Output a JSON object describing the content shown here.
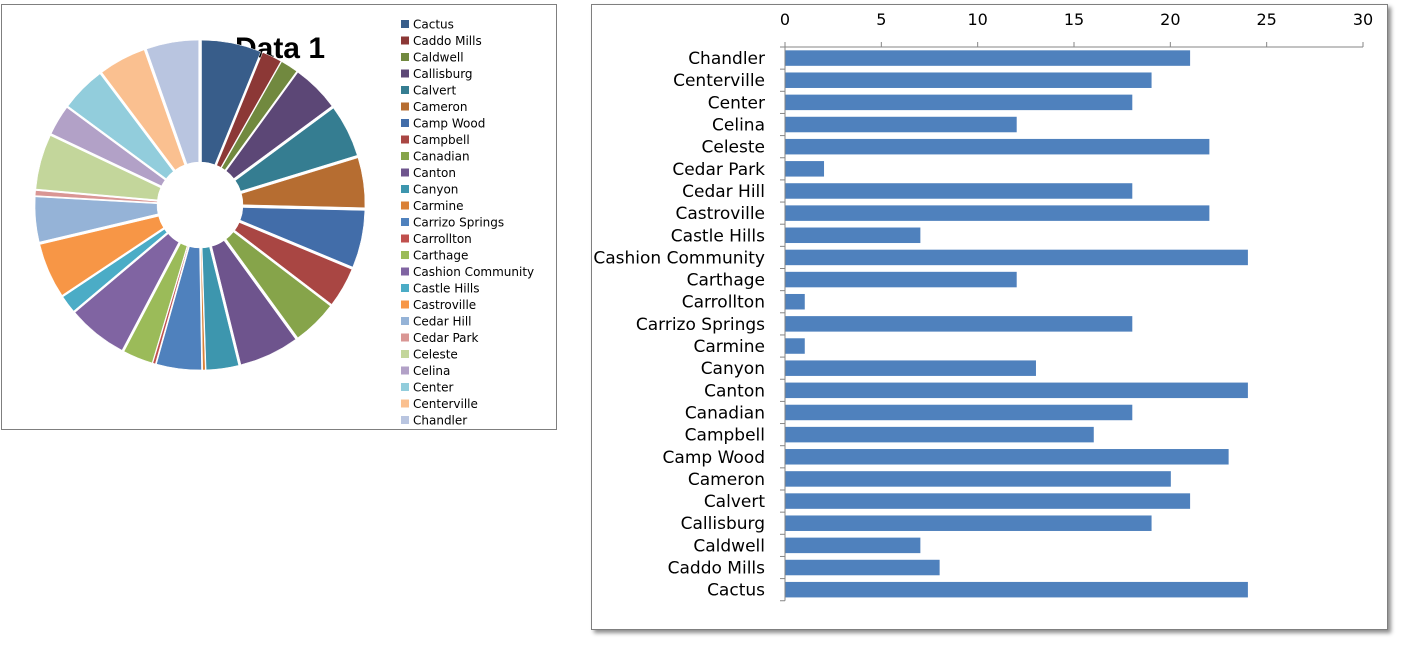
{
  "chart_data": [
    {
      "type": "pie",
      "title": "Data 1",
      "legend_position": "right",
      "categories": [
        "Cactus",
        "Caddo Mills",
        "Caldwell",
        "Callisburg",
        "Calvert",
        "Cameron",
        "Camp Wood",
        "Campbell",
        "Canadian",
        "Canton",
        "Canyon",
        "Carmine",
        "Carrizo Springs",
        "Carrollton",
        "Carthage",
        "Cashion Community",
        "Castle Hills",
        "Castroville",
        "Cedar Hill",
        "Cedar Park",
        "Celeste",
        "Celina",
        "Center",
        "Centerville",
        "Chandler"
      ],
      "values": [
        24,
        8,
        7,
        19,
        21,
        20,
        23,
        16,
        18,
        24,
        13,
        1,
        18,
        1,
        12,
        24,
        7,
        22,
        18,
        2,
        22,
        12,
        18,
        19,
        21
      ],
      "colors": [
        "#385d8a",
        "#8c3836",
        "#71893f",
        "#5c4776",
        "#357d91",
        "#b66d31",
        "#426da9",
        "#a94643",
        "#86a44a",
        "#6e548d",
        "#3d96ae",
        "#da8137",
        "#4f81bd",
        "#c0504d",
        "#9bbb59",
        "#8064a2",
        "#4bacc6",
        "#f79646",
        "#95b3d7",
        "#d99694",
        "#c3d69b",
        "#b2a1c7",
        "#92cddc",
        "#fac090",
        "#b9c5e0"
      ]
    },
    {
      "type": "bar",
      "orientation": "horizontal",
      "categories": [
        "Chandler",
        "Centerville",
        "Center",
        "Celina",
        "Celeste",
        "Cedar Park",
        "Cedar Hill",
        "Castroville",
        "Castle Hills",
        "Cashion Community",
        "Carthage",
        "Carrollton",
        "Carrizo Springs",
        "Carmine",
        "Canyon",
        "Canton",
        "Canadian",
        "Campbell",
        "Camp Wood",
        "Cameron",
        "Calvert",
        "Callisburg",
        "Caldwell",
        "Caddo Mills",
        "Cactus"
      ],
      "values": [
        21,
        19,
        18,
        12,
        22,
        2,
        18,
        22,
        7,
        24,
        12,
        1,
        18,
        1,
        13,
        24,
        18,
        16,
        23,
        20,
        21,
        19,
        7,
        8,
        24
      ],
      "xlim": [
        0,
        30
      ],
      "xticks": [
        "0",
        "5",
        "10",
        "15",
        "20",
        "25",
        "30"
      ],
      "axis_position": "top",
      "color": "#4f81bd"
    }
  ]
}
